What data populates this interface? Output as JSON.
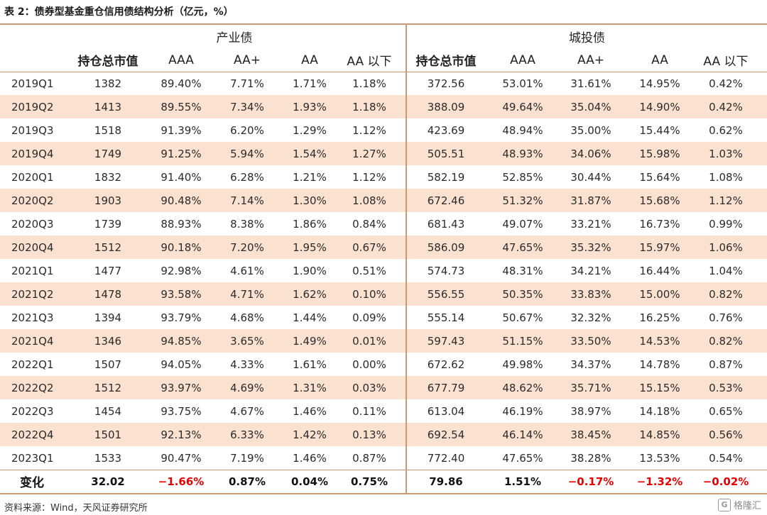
{
  "caption": "表 2：债券型基金重仓信用债结构分析（亿元，%）",
  "groups": {
    "industrial": "产业债",
    "urban": "城投债"
  },
  "columns": [
    "持仓总市值",
    "AAA",
    "AA+",
    "AA",
    "AA 以下",
    "持仓总市值",
    "AAA",
    "AA+",
    "AA",
    "AA 以下"
  ],
  "rows": [
    [
      "2019Q1",
      "1382",
      "89.40%",
      "7.71%",
      "1.71%",
      "1.18%",
      "372.56",
      "53.01%",
      "31.61%",
      "14.95%",
      "0.42%"
    ],
    [
      "2019Q2",
      "1413",
      "89.55%",
      "7.34%",
      "1.93%",
      "1.18%",
      "388.09",
      "49.64%",
      "35.04%",
      "14.90%",
      "0.42%"
    ],
    [
      "2019Q3",
      "1518",
      "91.39%",
      "6.20%",
      "1.29%",
      "1.12%",
      "423.69",
      "48.94%",
      "35.00%",
      "15.44%",
      "0.62%"
    ],
    [
      "2019Q4",
      "1749",
      "91.25%",
      "5.94%",
      "1.54%",
      "1.27%",
      "505.51",
      "48.93%",
      "34.06%",
      "15.98%",
      "1.03%"
    ],
    [
      "2020Q1",
      "1832",
      "91.40%",
      "6.28%",
      "1.21%",
      "1.12%",
      "582.19",
      "52.85%",
      "30.44%",
      "15.64%",
      "1.08%"
    ],
    [
      "2020Q2",
      "1903",
      "90.48%",
      "7.14%",
      "1.30%",
      "1.08%",
      "672.46",
      "51.32%",
      "31.87%",
      "15.68%",
      "1.12%"
    ],
    [
      "2020Q3",
      "1739",
      "88.93%",
      "8.38%",
      "1.86%",
      "0.84%",
      "681.43",
      "49.07%",
      "33.21%",
      "16.73%",
      "0.99%"
    ],
    [
      "2020Q4",
      "1512",
      "90.18%",
      "7.20%",
      "1.95%",
      "0.67%",
      "586.09",
      "47.65%",
      "35.32%",
      "15.97%",
      "1.06%"
    ],
    [
      "2021Q1",
      "1477",
      "92.98%",
      "4.61%",
      "1.90%",
      "0.51%",
      "574.73",
      "48.31%",
      "34.21%",
      "16.44%",
      "1.04%"
    ],
    [
      "2021Q2",
      "1478",
      "93.58%",
      "4.71%",
      "1.62%",
      "0.10%",
      "556.55",
      "50.35%",
      "33.83%",
      "15.00%",
      "0.82%"
    ],
    [
      "2021Q3",
      "1394",
      "93.79%",
      "4.68%",
      "1.44%",
      "0.09%",
      "555.14",
      "50.67%",
      "32.32%",
      "16.25%",
      "0.76%"
    ],
    [
      "2021Q4",
      "1346",
      "94.85%",
      "3.65%",
      "1.49%",
      "0.01%",
      "597.43",
      "51.15%",
      "33.50%",
      "14.53%",
      "0.82%"
    ],
    [
      "2022Q1",
      "1507",
      "94.05%",
      "4.33%",
      "1.61%",
      "0.00%",
      "672.62",
      "49.98%",
      "34.37%",
      "14.78%",
      "0.87%"
    ],
    [
      "2022Q2",
      "1512",
      "93.97%",
      "4.69%",
      "1.31%",
      "0.03%",
      "677.79",
      "48.62%",
      "35.71%",
      "15.15%",
      "0.53%"
    ],
    [
      "2022Q3",
      "1454",
      "93.75%",
      "4.67%",
      "1.46%",
      "0.11%",
      "613.04",
      "46.19%",
      "38.97%",
      "14.18%",
      "0.65%"
    ],
    [
      "2022Q4",
      "1501",
      "92.13%",
      "6.33%",
      "1.42%",
      "0.13%",
      "692.54",
      "46.14%",
      "38.45%",
      "14.85%",
      "0.56%"
    ],
    [
      "2023Q1",
      "1533",
      "90.47%",
      "7.19%",
      "1.46%",
      "0.87%",
      "772.40",
      "47.65%",
      "38.28%",
      "13.53%",
      "0.54%"
    ]
  ],
  "change_row": [
    "变化",
    "32.02",
    "−1.66%",
    "0.87%",
    "0.04%",
    "0.75%",
    "79.86",
    "1.51%",
    "−0.17%",
    "−1.32%",
    "−0.02%"
  ],
  "change_negative_color": "#e60000",
  "band_color": "#fbe1d0",
  "rule_color": "#c99a73",
  "source": "资料来源：Wind，天风证券研究所",
  "watermark": "格隆汇"
}
